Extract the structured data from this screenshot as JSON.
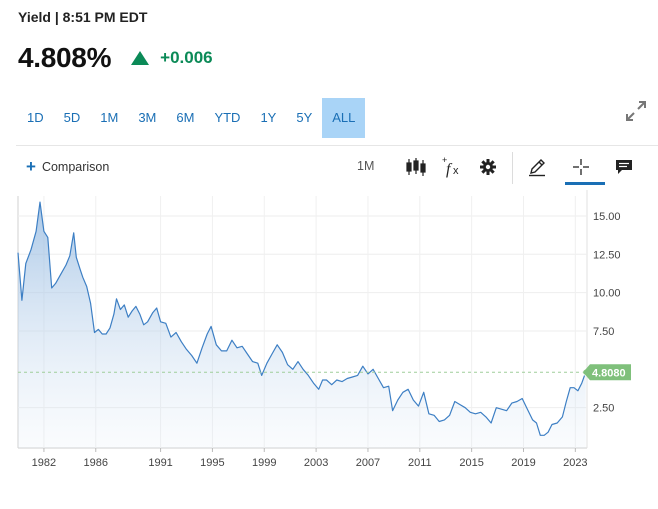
{
  "header": {
    "title": "Yield | 8:51 PM EDT",
    "price": "4.808%",
    "change": "+0.006",
    "change_color": "#0b8a57"
  },
  "ranges": [
    {
      "label": "1D",
      "active": false
    },
    {
      "label": "5D",
      "active": false
    },
    {
      "label": "1M",
      "active": false
    },
    {
      "label": "3M",
      "active": false
    },
    {
      "label": "6M",
      "active": false
    },
    {
      "label": "YTD",
      "active": false
    },
    {
      "label": "1Y",
      "active": false
    },
    {
      "label": "5Y",
      "active": false
    },
    {
      "label": "ALL",
      "active": true
    }
  ],
  "toolbar": {
    "comparison_label": "Comparison",
    "interval_label": "1M",
    "icons": [
      "candlestick-icon",
      "function-icon",
      "gear-icon",
      "draw-pencil-icon",
      "crosshair-icon",
      "comment-icon"
    ]
  },
  "chart_data": {
    "type": "area",
    "y_ticks": [
      "15.00",
      "12.50",
      "10.00",
      "7.50",
      "2.50"
    ],
    "x_tick_labels": [
      "1982",
      "1986",
      "1991",
      "1995",
      "1999",
      "2003",
      "2007",
      "2011",
      "2015",
      "2019",
      "2023"
    ],
    "ylim": [
      0,
      16.3
    ],
    "xlim": [
      1980.0,
      2023.9
    ],
    "grid": true,
    "last_value": 4.808,
    "last_value_label": "4.8080",
    "line_color": "#3d7fc4",
    "label_bg_color": "#7fc07b",
    "series": [
      {
        "x": [
          1980.0,
          1980.3,
          1980.6,
          1981.0,
          1981.4,
          1981.7,
          1982.0,
          1982.3,
          1982.6,
          1982.9,
          1983.3,
          1983.7,
          1984.0,
          1984.3,
          1984.5,
          1984.8,
          1985.0,
          1985.3,
          1985.6,
          1985.9,
          1986.2,
          1986.5,
          1986.8,
          1987.1,
          1987.4,
          1987.6,
          1987.9,
          1988.2,
          1988.5,
          1988.8,
          1989.1,
          1989.4,
          1989.7,
          1990.0,
          1990.4,
          1990.7,
          1991.0,
          1991.4,
          1991.8,
          1992.2,
          1992.6,
          1993.0,
          1993.4,
          1993.8,
          1994.2,
          1994.6,
          1994.9,
          1995.3,
          1995.7,
          1996.1,
          1996.5,
          1996.9,
          1997.3,
          1997.7,
          1998.1,
          1998.5,
          1998.8,
          1999.2,
          1999.6,
          2000.0,
          2000.4,
          2000.8,
          2001.2,
          2001.6,
          2002.0,
          2002.4,
          2002.8,
          2003.2,
          2003.5,
          2003.8,
          2004.2,
          2004.6,
          2005.0,
          2005.4,
          2005.8,
          2006.2,
          2006.6,
          2007.0,
          2007.4,
          2007.8,
          2008.2,
          2008.6,
          2008.9,
          2009.3,
          2009.7,
          2010.1,
          2010.5,
          2010.9,
          2011.3,
          2011.7,
          2012.1,
          2012.5,
          2012.9,
          2013.3,
          2013.7,
          2014.1,
          2014.5,
          2014.9,
          2015.3,
          2015.7,
          2016.1,
          2016.5,
          2016.9,
          2017.3,
          2017.7,
          2018.1,
          2018.5,
          2018.9,
          2019.3,
          2019.7,
          2020.0,
          2020.3,
          2020.6,
          2020.9,
          2021.2,
          2021.6,
          2022.0,
          2022.3,
          2022.6,
          2022.9,
          2023.2,
          2023.5,
          2023.8
        ],
        "values": [
          12.6,
          9.5,
          11.9,
          12.8,
          14.0,
          15.9,
          14.0,
          13.6,
          10.3,
          10.6,
          11.2,
          11.8,
          12.4,
          13.9,
          12.3,
          11.5,
          11.0,
          10.4,
          9.3,
          7.4,
          7.6,
          7.3,
          7.3,
          7.7,
          8.6,
          9.6,
          8.9,
          9.2,
          8.4,
          8.8,
          9.1,
          8.6,
          7.9,
          8.1,
          8.7,
          9.0,
          8.1,
          8.0,
          7.1,
          7.4,
          6.8,
          6.3,
          5.9,
          5.4,
          6.4,
          7.3,
          7.8,
          6.6,
          6.2,
          6.2,
          6.9,
          6.4,
          6.5,
          6.0,
          5.5,
          5.4,
          4.6,
          5.4,
          6.0,
          6.6,
          6.1,
          5.3,
          5.0,
          5.5,
          5.0,
          4.6,
          4.1,
          3.7,
          4.3,
          4.3,
          4.0,
          4.3,
          4.2,
          4.4,
          4.5,
          4.6,
          5.2,
          4.7,
          5.0,
          4.4,
          3.8,
          3.9,
          2.3,
          3.0,
          3.5,
          3.7,
          3.0,
          2.6,
          3.5,
          2.1,
          2.0,
          1.6,
          1.7,
          2.0,
          2.9,
          2.7,
          2.5,
          2.2,
          2.1,
          2.2,
          1.9,
          1.5,
          2.5,
          2.4,
          2.3,
          2.8,
          2.9,
          3.1,
          2.4,
          1.7,
          1.5,
          0.7,
          0.7,
          0.9,
          1.4,
          1.5,
          1.9,
          2.9,
          3.8,
          3.8,
          3.6,
          4.1,
          4.81
        ]
      }
    ]
  }
}
